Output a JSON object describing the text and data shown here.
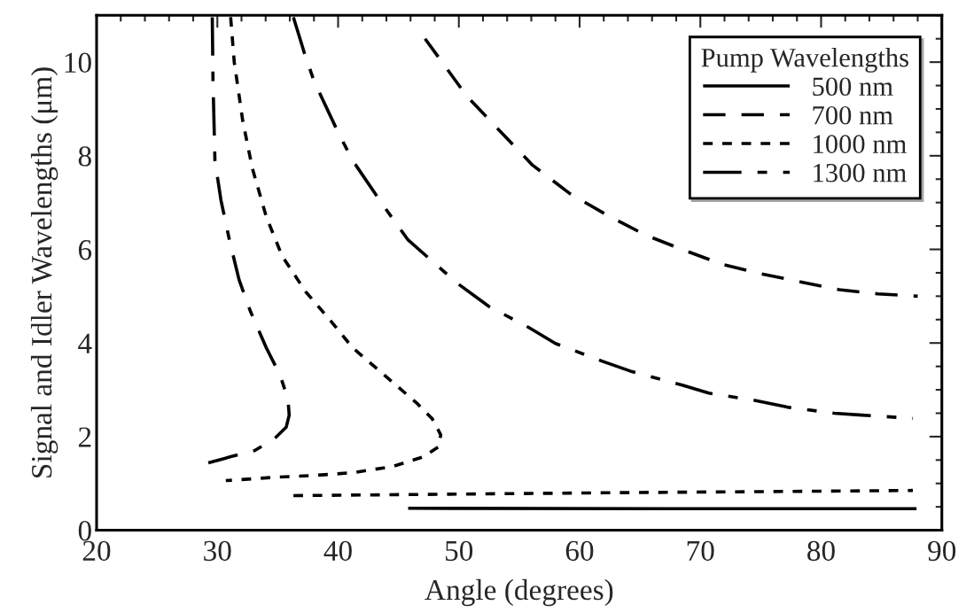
{
  "chart_data": {
    "type": "line",
    "xlabel": "Angle (degrees)",
    "ylabel": "Signal and Idler Wavelengths (μm)",
    "legend_title": "Pump Wavelengths",
    "xlim": [
      20,
      90
    ],
    "xticks": [
      20,
      30,
      40,
      50,
      60,
      70,
      80,
      90
    ],
    "ylim": [
      0,
      11
    ],
    "yticks": [
      0,
      2,
      4,
      6,
      8,
      10
    ],
    "grid": false,
    "legend": "top right",
    "series": [
      {
        "name": "500 nm",
        "color": "#000000",
        "line_style": "solid",
        "x": [
          45.8,
          66.9,
          87.9
        ],
        "values": [
          0.47,
          0.46,
          0.46
        ]
      },
      {
        "name": "700 nm",
        "color": "#000000",
        "line_style": "dashed",
        "x": [
          47.2,
          50.7,
          56.1,
          59.2,
          62.3,
          65.5,
          68.8,
          71.7,
          75,
          78.2,
          81.5,
          84.7,
          88
        ],
        "values": [
          10.5,
          9.26,
          7.8,
          7.19,
          6.73,
          6.3,
          5.97,
          5.69,
          5.48,
          5.31,
          5.14,
          5.05,
          5.0
        ]
      },
      {
        "name": "1000 nm",
        "color": "#000000",
        "line_style": "dotted",
        "x": [
          31.1,
          31.4,
          32.1,
          32.9,
          34.05,
          35.36,
          37.3,
          39.3,
          41.2,
          43.85,
          46.5,
          47.8,
          48.5,
          48.3,
          47.1,
          44.5,
          41.2,
          38,
          34.7,
          30.7,
          null,
          36.3,
          62,
          87.6
        ],
        "values": [
          10.96,
          10.0,
          8.75,
          7.73,
          6.7,
          5.86,
          5.1,
          4.5,
          3.9,
          3.31,
          2.72,
          2.38,
          2.04,
          1.78,
          1.57,
          1.36,
          1.23,
          1.17,
          1.13,
          1.06,
          null,
          0.74,
          0.8,
          0.85
        ]
      },
      {
        "name": "1300 nm",
        "color": "#000000",
        "line_style": "dashdot",
        "x": [
          29.58,
          29.64,
          29.8,
          30.3,
          31.0,
          31.8,
          32.75,
          34.05,
          35.2,
          35.85,
          35.95,
          35.7,
          34.7,
          33.07,
          31.1,
          29.25,
          null,
          36.3,
          37.2,
          38,
          40,
          41.2,
          43.9,
          45.8,
          49.9,
          52.5,
          55.8,
          58,
          61.9,
          64.2,
          68.5,
          70.7,
          74.6,
          77.2,
          81.1,
          83.4,
          87.6
        ],
        "values": [
          10.96,
          9.6,
          7.9,
          7.05,
          6.2,
          5.35,
          4.67,
          3.9,
          3.31,
          2.8,
          2.46,
          2.2,
          1.95,
          1.7,
          1.57,
          1.44,
          null,
          10.96,
          10.2,
          9.6,
          8.5,
          7.9,
          6.88,
          6.2,
          5.27,
          4.78,
          4.33,
          3.99,
          3.61,
          3.4,
          3.1,
          2.93,
          2.77,
          2.63,
          2.5,
          2.46,
          2.39
        ]
      }
    ]
  }
}
